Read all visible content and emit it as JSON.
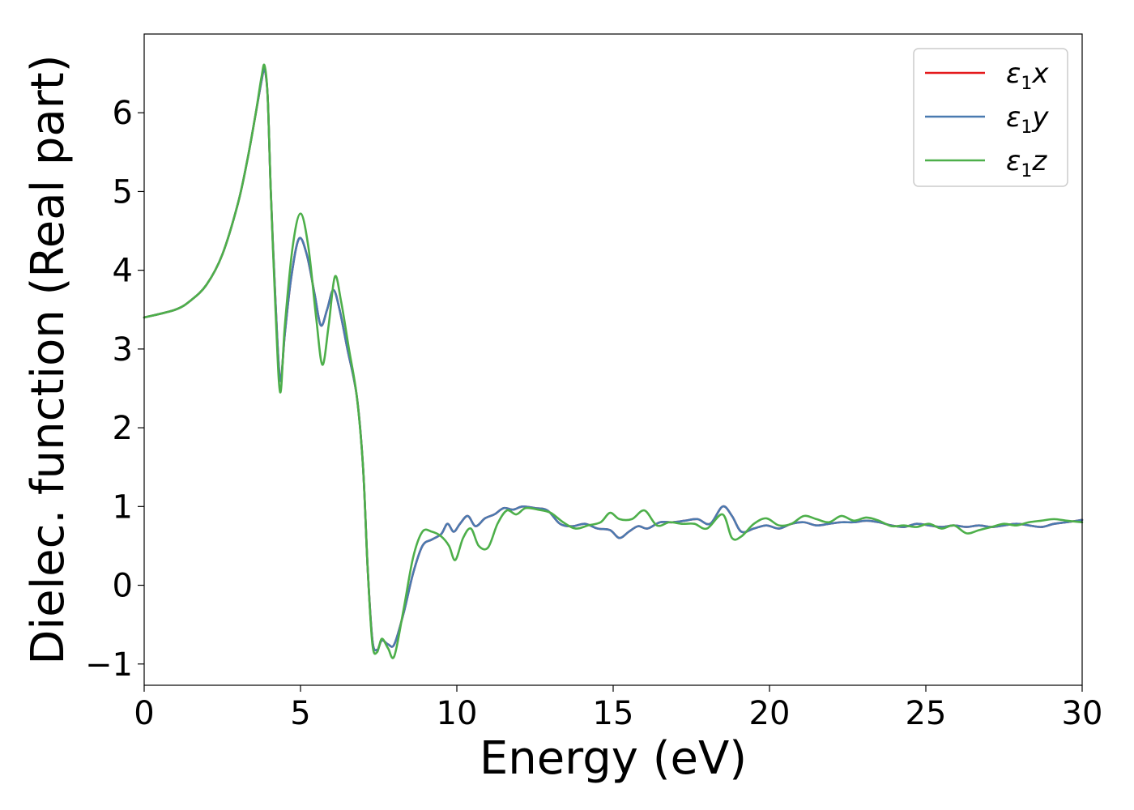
{
  "chart_data": {
    "type": "line",
    "title": "",
    "xlabel": "Energy (eV)",
    "ylabel": "Dielec. function (Real part)",
    "xlim": [
      0,
      30
    ],
    "ylim": [
      -1.27,
      7.0
    ],
    "xticks": [
      0,
      5,
      10,
      15,
      20,
      25,
      30
    ],
    "yticks": [
      -1,
      0,
      1,
      2,
      3,
      4,
      5,
      6
    ],
    "ytick_labels": [
      "−1",
      "0",
      "1",
      "2",
      "3",
      "4",
      "5",
      "6"
    ],
    "grid": false,
    "legend_position": "top-right",
    "series": [
      {
        "name_base": "ε",
        "name_sub": "1",
        "name_var": "x",
        "color": "#e41a1c",
        "x": [
          0,
          1,
          1.5,
          2,
          2.5,
          3,
          3.3,
          3.55,
          3.75,
          3.85,
          3.95,
          4.05,
          4.2,
          4.35,
          4.5,
          4.7,
          4.95,
          5.2,
          5.45,
          5.65,
          5.85,
          6.05,
          6.25,
          6.5,
          6.8,
          7.0,
          7.15,
          7.3,
          7.45,
          7.6,
          7.8,
          8.0,
          8.3,
          8.6,
          8.9,
          9.2,
          9.5,
          9.7,
          9.9,
          10.1,
          10.35,
          10.6,
          10.9,
          11.2,
          11.5,
          11.8,
          12.1,
          12.5,
          12.9,
          13.3,
          13.7,
          14.1,
          14.5,
          14.9,
          15.2,
          15.5,
          15.8,
          16.1,
          16.5,
          16.9,
          17.3,
          17.7,
          18.1,
          18.5,
          18.8,
          19.1,
          19.5,
          19.9,
          20.3,
          20.7,
          21.1,
          21.5,
          21.9,
          22.3,
          22.7,
          23.1,
          23.5,
          23.9,
          24.3,
          24.7,
          25.1,
          25.5,
          25.9,
          26.3,
          26.7,
          27.1,
          27.5,
          27.9,
          28.3,
          28.7,
          29.1,
          29.5,
          30
        ],
        "y": [
          3.4,
          3.5,
          3.62,
          3.82,
          4.2,
          4.85,
          5.4,
          5.95,
          6.4,
          6.55,
          6.2,
          5.0,
          3.6,
          2.6,
          3.2,
          3.9,
          4.4,
          4.2,
          3.7,
          3.3,
          3.5,
          3.75,
          3.5,
          3.0,
          2.4,
          1.5,
          0.2,
          -0.7,
          -0.82,
          -0.7,
          -0.75,
          -0.75,
          -0.35,
          0.15,
          0.5,
          0.58,
          0.65,
          0.78,
          0.68,
          0.78,
          0.88,
          0.75,
          0.85,
          0.9,
          0.98,
          0.96,
          1.0,
          0.98,
          0.95,
          0.78,
          0.75,
          0.78,
          0.72,
          0.7,
          0.6,
          0.68,
          0.75,
          0.72,
          0.8,
          0.8,
          0.82,
          0.84,
          0.78,
          1.0,
          0.88,
          0.68,
          0.72,
          0.76,
          0.72,
          0.78,
          0.8,
          0.76,
          0.78,
          0.8,
          0.8,
          0.82,
          0.8,
          0.76,
          0.74,
          0.78,
          0.76,
          0.74,
          0.76,
          0.74,
          0.76,
          0.74,
          0.76,
          0.78,
          0.76,
          0.74,
          0.78,
          0.8,
          0.83
        ]
      },
      {
        "name_base": "ε",
        "name_sub": "1",
        "name_var": "y",
        "color": "#4a7ab0",
        "x": [
          0,
          1,
          1.5,
          2,
          2.5,
          3,
          3.3,
          3.55,
          3.75,
          3.85,
          3.95,
          4.05,
          4.2,
          4.35,
          4.5,
          4.7,
          4.95,
          5.2,
          5.45,
          5.65,
          5.85,
          6.05,
          6.25,
          6.5,
          6.8,
          7.0,
          7.15,
          7.3,
          7.45,
          7.6,
          7.8,
          8.0,
          8.3,
          8.6,
          8.9,
          9.2,
          9.5,
          9.7,
          9.9,
          10.1,
          10.35,
          10.6,
          10.9,
          11.2,
          11.5,
          11.8,
          12.1,
          12.5,
          12.9,
          13.3,
          13.7,
          14.1,
          14.5,
          14.9,
          15.2,
          15.5,
          15.8,
          16.1,
          16.5,
          16.9,
          17.3,
          17.7,
          18.1,
          18.5,
          18.8,
          19.1,
          19.5,
          19.9,
          20.3,
          20.7,
          21.1,
          21.5,
          21.9,
          22.3,
          22.7,
          23.1,
          23.5,
          23.9,
          24.3,
          24.7,
          25.1,
          25.5,
          25.9,
          26.3,
          26.7,
          27.1,
          27.5,
          27.9,
          28.3,
          28.7,
          29.1,
          29.5,
          30
        ],
        "y": [
          3.4,
          3.5,
          3.62,
          3.82,
          4.2,
          4.85,
          5.4,
          5.95,
          6.4,
          6.55,
          6.2,
          5.0,
          3.6,
          2.6,
          3.2,
          3.9,
          4.4,
          4.2,
          3.7,
          3.3,
          3.5,
          3.75,
          3.5,
          3.0,
          2.4,
          1.5,
          0.2,
          -0.7,
          -0.82,
          -0.7,
          -0.75,
          -0.75,
          -0.35,
          0.15,
          0.5,
          0.58,
          0.65,
          0.78,
          0.68,
          0.78,
          0.88,
          0.75,
          0.85,
          0.9,
          0.98,
          0.96,
          1.0,
          0.98,
          0.95,
          0.78,
          0.75,
          0.78,
          0.72,
          0.7,
          0.6,
          0.68,
          0.75,
          0.72,
          0.8,
          0.8,
          0.82,
          0.84,
          0.78,
          1.0,
          0.88,
          0.68,
          0.72,
          0.76,
          0.72,
          0.78,
          0.8,
          0.76,
          0.78,
          0.8,
          0.8,
          0.82,
          0.8,
          0.76,
          0.74,
          0.78,
          0.76,
          0.74,
          0.76,
          0.74,
          0.76,
          0.74,
          0.76,
          0.78,
          0.76,
          0.74,
          0.78,
          0.8,
          0.83
        ]
      },
      {
        "name_base": "ε",
        "name_sub": "1",
        "name_var": "z",
        "color": "#4daf4a",
        "x": [
          0,
          1,
          1.5,
          2,
          2.5,
          3,
          3.3,
          3.55,
          3.75,
          3.85,
          3.95,
          4.05,
          4.2,
          4.35,
          4.5,
          4.75,
          5.0,
          5.25,
          5.5,
          5.7,
          5.9,
          6.1,
          6.3,
          6.55,
          6.8,
          7.0,
          7.15,
          7.3,
          7.45,
          7.6,
          7.8,
          8.0,
          8.3,
          8.6,
          8.9,
          9.2,
          9.5,
          9.75,
          9.95,
          10.2,
          10.45,
          10.7,
          11.0,
          11.3,
          11.6,
          11.9,
          12.2,
          12.6,
          13.0,
          13.4,
          13.8,
          14.2,
          14.6,
          14.9,
          15.2,
          15.6,
          16.0,
          16.4,
          16.8,
          17.2,
          17.6,
          18.0,
          18.5,
          18.8,
          19.1,
          19.5,
          19.9,
          20.3,
          20.7,
          21.1,
          21.5,
          21.9,
          22.3,
          22.7,
          23.1,
          23.5,
          23.9,
          24.3,
          24.7,
          25.1,
          25.5,
          25.9,
          26.3,
          26.7,
          27.1,
          27.5,
          27.9,
          28.3,
          28.7,
          29.1,
          29.5,
          30
        ],
        "y": [
          3.4,
          3.5,
          3.62,
          3.82,
          4.2,
          4.85,
          5.4,
          5.95,
          6.45,
          6.6,
          6.2,
          5.0,
          3.5,
          2.45,
          3.3,
          4.3,
          4.72,
          4.3,
          3.4,
          2.8,
          3.3,
          3.92,
          3.6,
          3.0,
          2.4,
          1.5,
          0.2,
          -0.75,
          -0.85,
          -0.68,
          -0.8,
          -0.9,
          -0.3,
          0.35,
          0.68,
          0.68,
          0.62,
          0.5,
          0.32,
          0.6,
          0.72,
          0.5,
          0.48,
          0.78,
          0.95,
          0.9,
          0.98,
          0.96,
          0.92,
          0.8,
          0.72,
          0.76,
          0.8,
          0.92,
          0.84,
          0.84,
          0.95,
          0.76,
          0.8,
          0.78,
          0.78,
          0.72,
          0.9,
          0.6,
          0.62,
          0.78,
          0.85,
          0.76,
          0.78,
          0.88,
          0.84,
          0.8,
          0.88,
          0.82,
          0.86,
          0.82,
          0.75,
          0.76,
          0.74,
          0.78,
          0.72,
          0.76,
          0.66,
          0.7,
          0.74,
          0.78,
          0.76,
          0.8,
          0.82,
          0.84,
          0.82,
          0.8
        ]
      }
    ]
  },
  "colors": {
    "x_series": "#e41a1c",
    "y_series": "#4a7ab0",
    "z_series": "#4daf4a",
    "axes": "#000000",
    "background": "#ffffff"
  }
}
